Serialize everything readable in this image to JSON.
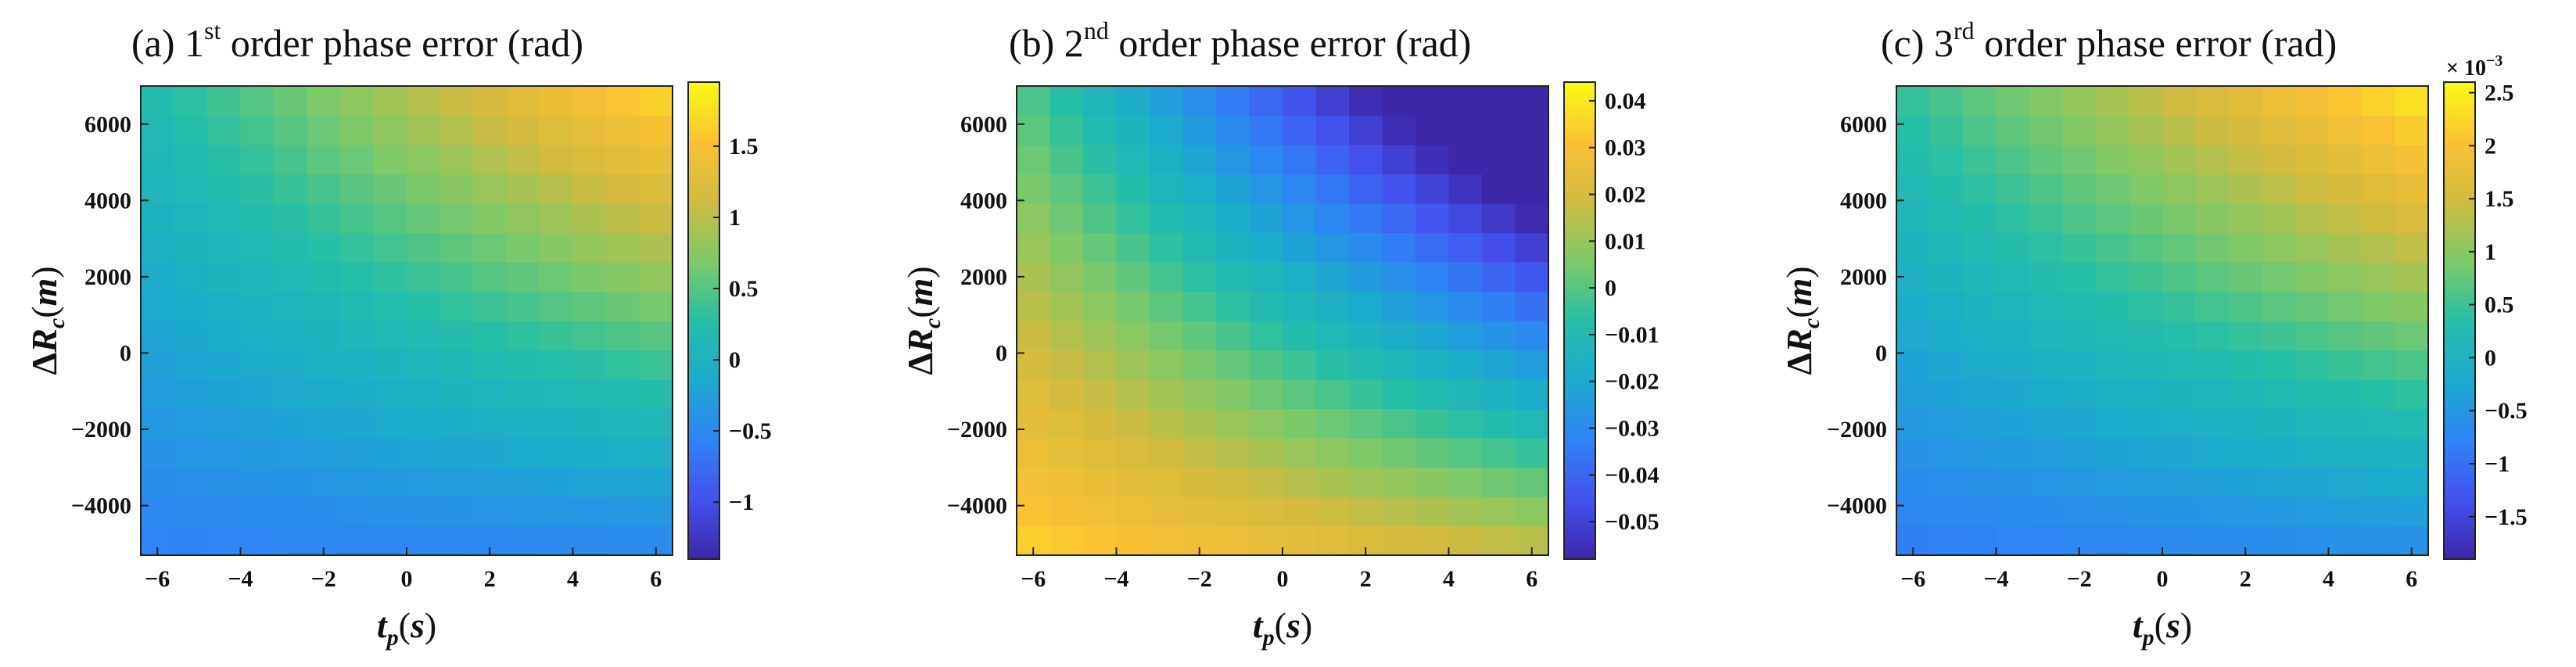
{
  "chart_data": [
    {
      "type": "heatmap",
      "title_prefix": "(a) 1",
      "title_sup": "st",
      "title_suffix": " order phase error (rad)",
      "xlabel": "t_p (s)",
      "ylabel": "ΔR_c (m)",
      "xlim": [
        -6.4,
        6.4
      ],
      "ylim": [
        -5300,
        7000
      ],
      "x_ticks": [
        "−6",
        "−4",
        "−2",
        "0",
        "2",
        "4",
        "6"
      ],
      "y_ticks": [
        "−4000",
        "−2000",
        "0",
        "2000",
        "4000",
        "6000"
      ],
      "grid_cols": 16,
      "grid_rows": 16,
      "value_model": {
        "base": 0.1,
        "ax": 0.055,
        "by": 0.000125,
        "cxy": 9.8e-06
      },
      "clim": [
        -1.4,
        1.95
      ],
      "colorbar_ticks": [
        -1,
        -0.5,
        0,
        0.5,
        1,
        1.5
      ],
      "colorbar_tick_labels": [
        "−1",
        "−0.5",
        "0",
        "0.5",
        "1",
        "1.5"
      ],
      "colorbar_multiplier": ""
    },
    {
      "type": "heatmap",
      "title_prefix": "(b) 2",
      "title_sup": "nd",
      "title_suffix": " order phase error (rad)",
      "xlabel": "t_p (s)",
      "ylabel": "ΔR_c (m)",
      "xlim": [
        -6.4,
        6.4
      ],
      "ylim": [
        -5300,
        7000
      ],
      "x_ticks": [
        "−6",
        "−4",
        "−2",
        "0",
        "2",
        "4",
        "6"
      ],
      "y_ticks": [
        "−4000",
        "−2000",
        "0",
        "2000",
        "4000",
        "6000"
      ],
      "grid_cols": 16,
      "grid_rows": 16,
      "value_model": {
        "base": -0.004,
        "ax": -0.0038,
        "by": -5.8e-06,
        "cxy": -4.5e-07
      },
      "clim": [
        -0.058,
        0.044
      ],
      "colorbar_ticks": [
        -0.05,
        -0.04,
        -0.03,
        -0.02,
        -0.01,
        0,
        0.01,
        0.02,
        0.03,
        0.04
      ],
      "colorbar_tick_labels": [
        "−0.05",
        "−0.04",
        "−0.03",
        "−0.02",
        "−0.01",
        "0",
        "0.01",
        "0.02",
        "0.03",
        "0.04"
      ],
      "colorbar_multiplier": ""
    },
    {
      "type": "heatmap",
      "title_prefix": "(c) 3",
      "title_sup": "rd",
      "title_suffix": " order phase error (rad)",
      "xlabel": "t_p (s)",
      "ylabel": "ΔR_c (m)",
      "xlim": [
        -6.4,
        6.4
      ],
      "ylim": [
        -5300,
        7000
      ],
      "x_ticks": [
        "−6",
        "−4",
        "−2",
        "0",
        "2",
        "4",
        "6"
      ],
      "y_ticks": [
        "−4000",
        "−2000",
        "0",
        "2000",
        "4000",
        "6000"
      ],
      "grid_cols": 16,
      "grid_rows": 16,
      "value_model": {
        "base": 0.2,
        "ax": 0.08,
        "by": 0.00018,
        "cxy": 1.18e-05
      },
      "clim": [
        -1.9,
        2.6
      ],
      "colorbar_ticks": [
        -1.5,
        -1,
        -0.5,
        0,
        0.5,
        1,
        1.5,
        2,
        2.5
      ],
      "colorbar_tick_labels": [
        "−1.5",
        "−1",
        "−0.5",
        "0",
        "0.5",
        "1",
        "1.5",
        "2",
        "2.5"
      ],
      "colorbar_multiplier": "× 10"
    }
  ]
}
